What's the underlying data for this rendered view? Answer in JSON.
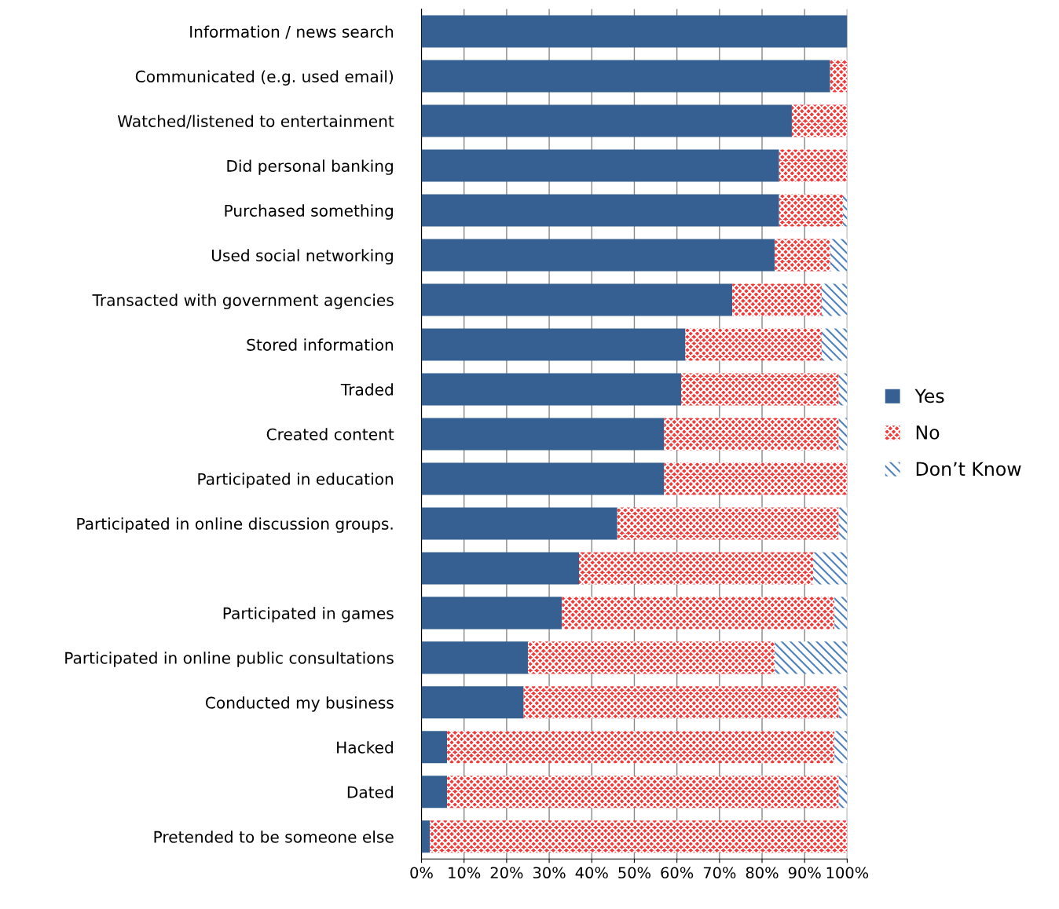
{
  "chart_data": {
    "type": "bar",
    "orientation": "horizontal",
    "stacked": true,
    "categories": [
      "Information / news search",
      "Communicated (e.g. used email)",
      "Watched/listened to entertainment",
      "Did personal banking",
      "Purchased something",
      "Used social networking",
      "Transacted with government agencies",
      "Stored information",
      "Traded",
      "Created content",
      "Participated in education",
      "Participated in online discussion groups.",
      null,
      "Participated in games",
      "Participated in online public consultations",
      "Conducted my business",
      "Hacked",
      "Dated",
      "Pretended to be someone else"
    ],
    "series": [
      {
        "name": "Yes",
        "color": "#376092",
        "values": [
          100,
          96,
          87,
          84,
          84,
          83,
          73,
          62,
          61,
          57,
          57,
          46,
          37,
          33,
          25,
          24,
          6,
          6,
          2
        ]
      },
      {
        "name": "No",
        "color": "#f23a3a",
        "values": [
          0,
          4,
          13,
          16,
          15,
          13,
          21,
          32,
          37,
          41,
          43,
          52,
          55,
          64,
          58,
          74,
          91,
          92,
          98
        ]
      },
      {
        "name": "Don’t Know",
        "color": "#4f81bd",
        "values": [
          0,
          0,
          0,
          0,
          1,
          4,
          6,
          6,
          2,
          2,
          0,
          2,
          8,
          3,
          17,
          2,
          3,
          2,
          0
        ]
      }
    ],
    "xlim": [
      0,
      100
    ],
    "xticks": [
      {
        "value": 0,
        "label": "0%"
      },
      {
        "value": 10,
        "label": "10%"
      },
      {
        "value": 20,
        "label": "20%"
      },
      {
        "value": 30,
        "label": "30%"
      },
      {
        "value": 40,
        "label": "40%"
      },
      {
        "value": 50,
        "label": "50%"
      },
      {
        "value": 60,
        "label": "60%"
      },
      {
        "value": 70,
        "label": "70%"
      },
      {
        "value": 80,
        "label": "80%"
      },
      {
        "value": 90,
        "label": "90%"
      },
      {
        "value": 100,
        "label": "100%"
      }
    ],
    "grid": "x",
    "legend": "right"
  }
}
